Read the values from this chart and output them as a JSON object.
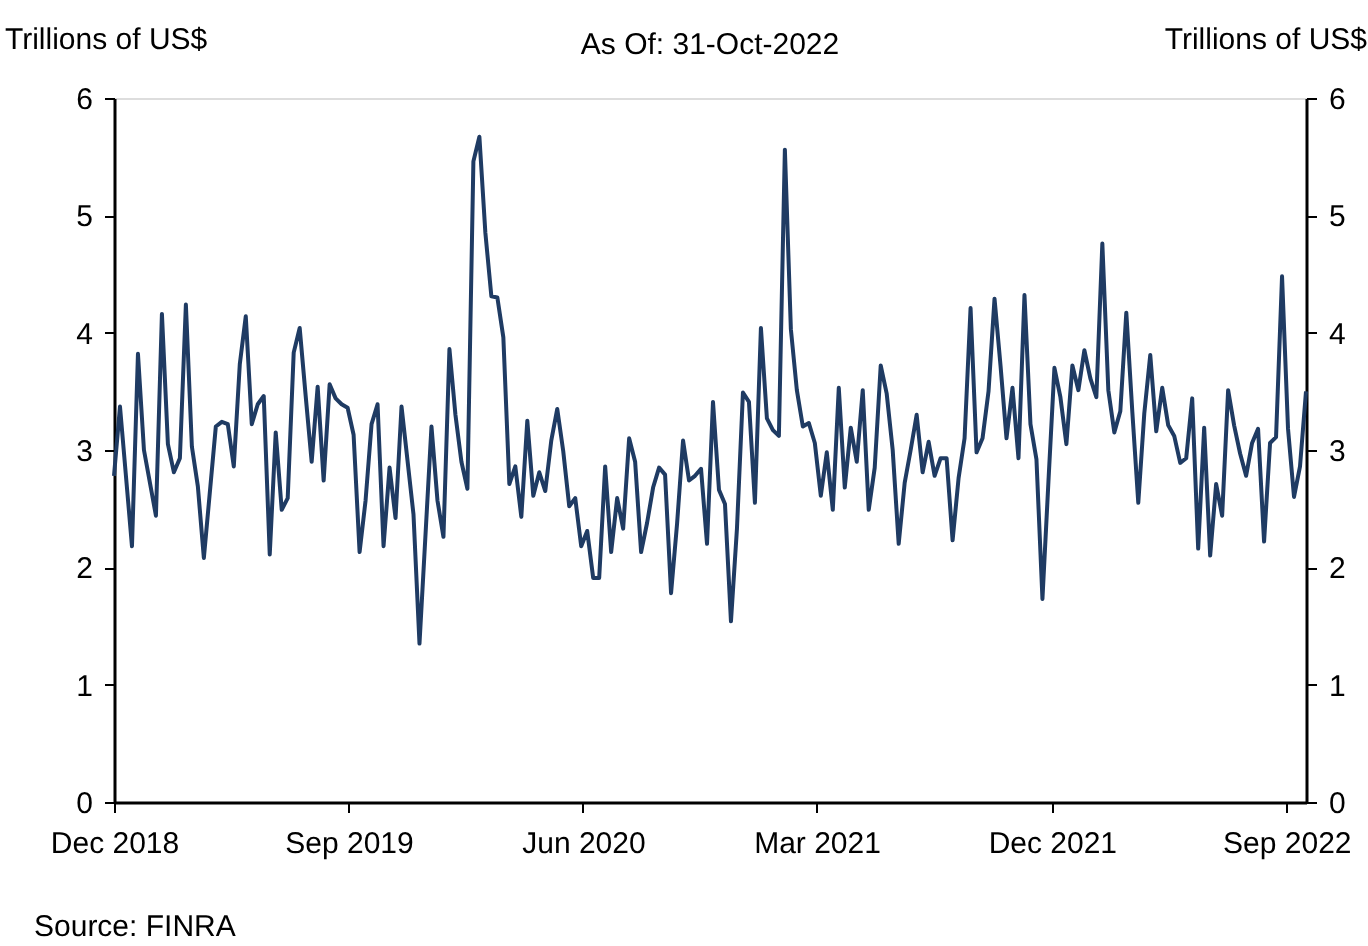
{
  "chart_data": {
    "type": "line",
    "subtitle": "As Of: 31-Oct-2022",
    "ylabel": "Trillions of US$",
    "y2label": "Trillions of US$",
    "annotations": [
      "Source: FINRA"
    ],
    "x": [
      "2018-12-01",
      "2018-12-08",
      "2018-12-22",
      "2018-12-29",
      "2019-01-05",
      "2019-01-19",
      "2019-01-26",
      "2019-02-02",
      "2019-02-09",
      "2019-02-16",
      "2019-02-23",
      "2019-03-02",
      "2019-03-09",
      "2019-03-16",
      "2019-03-30",
      "2019-04-06",
      "2019-04-13",
      "2019-04-20",
      "2019-04-27",
      "2019-05-04",
      "2019-05-11",
      "2019-05-18",
      "2019-05-25",
      "2019-06-01",
      "2019-06-08",
      "2019-06-15",
      "2019-06-22",
      "2019-06-29",
      "2019-07-06",
      "2019-07-13",
      "2019-07-20",
      "2019-07-27",
      "2019-08-03",
      "2019-08-10",
      "2019-08-17",
      "2019-08-24",
      "2019-08-31",
      "2019-09-07",
      "2019-09-14",
      "2019-09-21",
      "2019-09-28",
      "2019-10-05",
      "2019-10-12",
      "2019-10-19",
      "2019-10-26",
      "2019-11-02",
      "2019-11-16",
      "2019-11-23",
      "2019-12-07",
      "2019-12-14",
      "2019-12-21",
      "2019-12-28",
      "2020-01-04",
      "2020-01-11",
      "2020-01-18",
      "2020-01-25",
      "2020-02-01",
      "2020-02-08",
      "2020-02-15",
      "2020-02-22",
      "2020-02-29",
      "2020-03-07",
      "2020-03-14",
      "2020-03-21",
      "2020-03-28",
      "2020-04-04",
      "2020-04-11",
      "2020-04-18",
      "2020-04-25",
      "2020-05-02",
      "2020-05-09",
      "2020-05-16",
      "2020-05-23",
      "2020-05-30",
      "2020-06-06",
      "2020-06-13",
      "2020-06-20",
      "2020-06-27",
      "2020-07-04",
      "2020-07-11",
      "2020-07-18",
      "2020-07-25",
      "2020-08-01",
      "2020-08-08",
      "2020-08-15",
      "2020-08-22",
      "2020-08-29",
      "2020-09-05",
      "2020-09-12",
      "2020-09-19",
      "2020-09-26",
      "2020-10-03",
      "2020-10-10",
      "2020-10-17",
      "2020-10-24",
      "2020-10-31",
      "2020-11-07",
      "2020-11-14",
      "2020-11-21",
      "2020-11-28",
      "2020-12-05",
      "2020-12-12",
      "2020-12-19",
      "2020-12-26",
      "2021-01-02",
      "2021-01-09",
      "2021-01-16",
      "2021-01-23",
      "2021-01-30",
      "2021-02-06",
      "2021-02-13",
      "2021-02-20",
      "2021-02-27",
      "2021-03-06",
      "2021-03-13",
      "2021-03-20",
      "2021-03-27",
      "2021-04-03",
      "2021-04-10",
      "2021-04-17",
      "2021-04-24",
      "2021-05-01",
      "2021-05-08",
      "2021-05-15",
      "2021-05-22",
      "2021-05-29",
      "2021-06-05",
      "2021-06-12",
      "2021-06-19",
      "2021-06-26",
      "2021-07-03",
      "2021-07-10",
      "2021-07-17",
      "2021-07-24",
      "2021-07-31",
      "2021-08-07",
      "2021-08-14",
      "2021-08-21",
      "2021-08-28",
      "2021-09-04",
      "2021-09-11",
      "2021-09-18",
      "2021-09-25",
      "2021-10-02",
      "2021-10-09",
      "2021-10-16",
      "2021-10-23",
      "2021-10-30",
      "2021-11-06",
      "2021-11-13",
      "2021-11-20",
      "2021-11-27",
      "2021-12-04",
      "2021-12-11",
      "2021-12-18",
      "2021-12-25",
      "2022-01-01",
      "2022-01-08",
      "2022-01-15",
      "2022-01-22",
      "2022-01-29",
      "2022-02-05",
      "2022-02-12",
      "2022-02-19",
      "2022-02-26",
      "2022-03-05",
      "2022-03-12",
      "2022-03-19",
      "2022-03-26",
      "2022-04-02",
      "2022-04-09",
      "2022-04-16",
      "2022-04-23",
      "2022-04-30",
      "2022-05-07",
      "2022-05-14",
      "2022-05-21",
      "2022-05-28",
      "2022-06-04",
      "2022-06-11",
      "2022-06-18",
      "2022-06-25",
      "2022-07-02",
      "2022-07-09",
      "2022-07-16",
      "2022-07-23",
      "2022-07-30",
      "2022-08-06",
      "2022-08-13",
      "2022-08-20",
      "2022-08-27",
      "2022-09-03",
      "2022-09-10",
      "2022-09-17",
      "2022-09-24"
    ],
    "series": [
      {
        "color": "#1f3b63",
        "values": [
          2.78,
          3.37,
          2.18,
          3.82,
          3.0,
          2.44,
          4.16,
          3.05,
          2.81,
          2.93,
          4.24,
          3.03,
          2.69,
          2.08,
          3.2,
          3.24,
          3.22,
          2.86,
          3.73,
          4.14,
          3.22,
          3.39,
          3.46,
          2.11,
          3.15,
          2.49,
          2.59,
          3.83,
          4.04,
          3.46,
          2.9,
          3.54,
          2.74,
          3.56,
          3.44,
          3.39,
          3.36,
          3.13,
          2.13,
          2.57,
          3.22,
          3.39,
          2.18,
          2.85,
          2.42,
          3.37,
          2.45,
          1.35,
          3.2,
          2.57,
          2.26,
          3.86,
          3.3,
          2.9,
          2.67,
          5.46,
          5.67,
          4.85,
          4.31,
          4.3,
          3.96,
          2.71,
          2.86,
          2.43,
          3.25,
          2.61,
          2.81,
          2.65,
          3.08,
          3.35,
          2.99,
          2.52,
          2.59,
          2.18,
          2.31,
          1.91,
          1.91,
          2.86,
          2.13,
          2.59,
          2.33,
          3.1,
          2.9,
          2.13,
          2.38,
          2.68,
          2.85,
          2.79,
          1.78,
          2.37,
          3.08,
          2.74,
          2.78,
          2.84,
          2.2,
          3.41,
          2.66,
          2.54,
          1.54,
          2.33,
          3.49,
          3.41,
          2.55,
          4.04,
          3.27,
          3.17,
          3.12,
          5.56,
          4.03,
          3.51,
          3.2,
          3.23,
          3.06,
          2.61,
          2.98,
          2.49,
          3.53,
          2.68,
          3.19,
          2.9,
          3.51,
          2.49,
          2.85,
          3.72,
          3.48,
          3.0,
          2.2,
          2.72,
          3.0,
          3.3,
          2.81,
          3.07,
          2.78,
          2.93,
          2.93,
          2.23,
          2.76,
          3.1,
          4.21,
          2.98,
          3.1,
          3.5,
          4.29,
          3.72,
          3.1,
          3.53,
          2.93,
          4.32,
          3.22,
          2.92,
          1.73,
          2.73,
          3.7,
          3.45,
          3.05,
          3.72,
          3.51,
          3.85,
          3.61,
          3.45,
          4.76,
          3.51,
          3.15,
          3.33,
          4.17,
          3.33,
          2.55,
          3.31,
          3.81,
          3.16,
          3.53,
          3.21,
          3.12,
          2.89,
          2.93,
          3.44,
          2.16,
          3.19,
          2.1,
          2.71,
          2.44,
          3.51,
          3.21,
          2.97,
          2.78,
          3.06,
          3.18,
          2.22,
          3.06,
          3.11,
          4.48,
          3.18,
          2.6,
          2.86,
          3.5
        ]
      }
    ],
    "xlim": [
      "2018-12-01",
      "2022-09-24"
    ],
    "xticks": [
      {
        "value": "2018-12-01",
        "label": "Dec 2018"
      },
      {
        "value": "2019-09-01",
        "label": "Sep 2019"
      },
      {
        "value": "2020-06-01",
        "label": "Jun 2020"
      },
      {
        "value": "2021-03-01",
        "label": "Mar 2021"
      },
      {
        "value": "2021-12-01",
        "label": "Dec 2021"
      },
      {
        "value": "2022-09-01",
        "label": "Sep 2022"
      }
    ],
    "ylim": [
      0,
      6
    ],
    "yticks": [
      0,
      1,
      2,
      3,
      4,
      5,
      6
    ],
    "y2lim": [
      0,
      6
    ],
    "y2ticks": [
      0,
      1,
      2,
      3,
      4,
      5,
      6
    ],
    "grid": false
  }
}
